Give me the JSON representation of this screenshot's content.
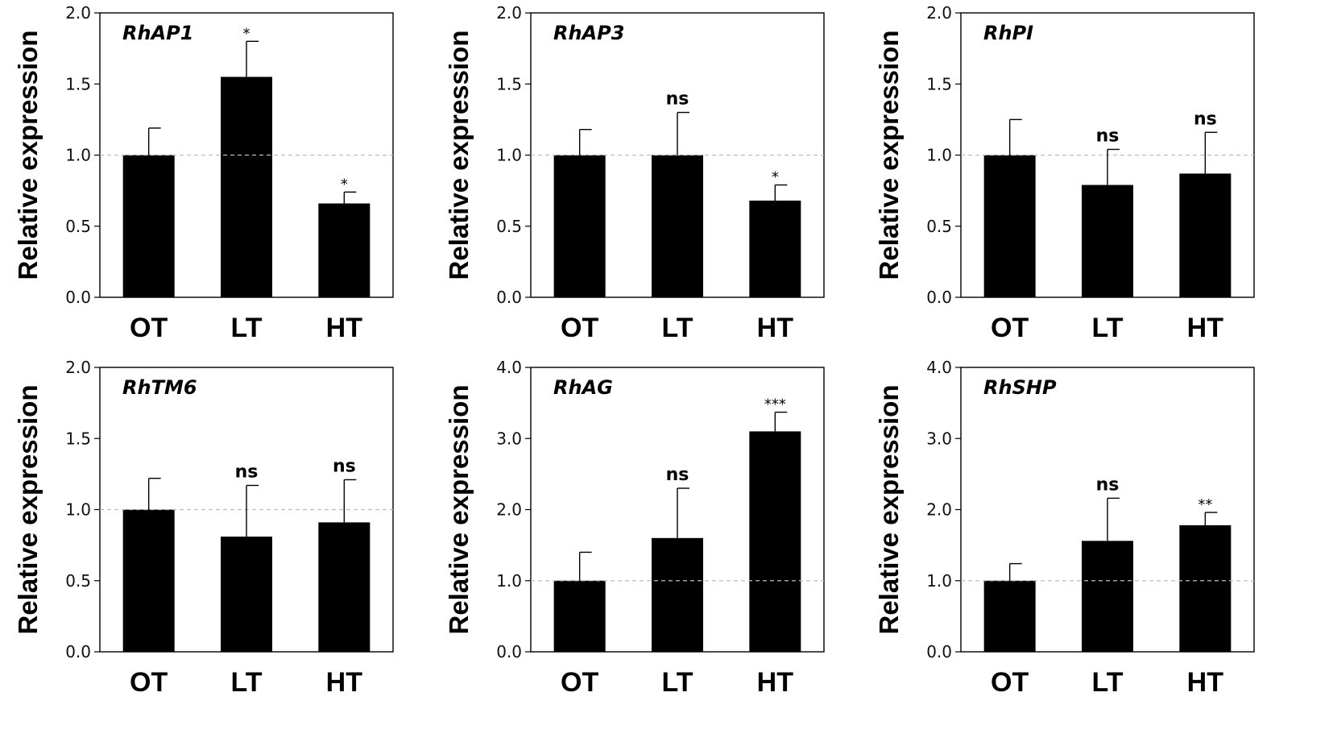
{
  "chart_data": [
    {
      "type": "bar",
      "title": "RhAP1",
      "categories": [
        "OT",
        "LT",
        "HT"
      ],
      "values": [
        1.0,
        1.55,
        0.66
      ],
      "errors": [
        0.19,
        0.25,
        0.08
      ],
      "significance": [
        "",
        "*",
        "*"
      ],
      "ylabel": "Relative expression",
      "ylim": [
        0,
        2.0
      ],
      "yticks": [
        "0.0",
        "0.5",
        "1.0",
        "1.5",
        "2.0"
      ],
      "reference_line": 1.0
    },
    {
      "type": "bar",
      "title": "RhAP3",
      "categories": [
        "OT",
        "LT",
        "HT"
      ],
      "values": [
        1.0,
        1.0,
        0.68
      ],
      "errors": [
        0.18,
        0.3,
        0.11
      ],
      "significance": [
        "",
        "ns",
        "*"
      ],
      "ylabel": "Relative expression",
      "ylim": [
        0,
        2.0
      ],
      "yticks": [
        "0.0",
        "0.5",
        "1.0",
        "1.5",
        "2.0"
      ],
      "reference_line": 1.0
    },
    {
      "type": "bar",
      "title": "RhPI",
      "categories": [
        "OT",
        "LT",
        "HT"
      ],
      "values": [
        1.0,
        0.79,
        0.87
      ],
      "errors": [
        0.25,
        0.25,
        0.29
      ],
      "significance": [
        "",
        "ns",
        "ns"
      ],
      "ylabel": "Relative expression",
      "ylim": [
        0,
        2.0
      ],
      "yticks": [
        "0.0",
        "0.5",
        "1.0",
        "1.5",
        "2.0"
      ],
      "reference_line": 1.0
    },
    {
      "type": "bar",
      "title": "RhTM6",
      "categories": [
        "OT",
        "LT",
        "HT"
      ],
      "values": [
        1.0,
        0.81,
        0.91
      ],
      "errors": [
        0.22,
        0.36,
        0.3
      ],
      "significance": [
        "",
        "ns",
        "ns"
      ],
      "ylabel": "Relative expression",
      "ylim": [
        0,
        2.0
      ],
      "yticks": [
        "0.0",
        "0.5",
        "1.0",
        "1.5",
        "2.0"
      ],
      "reference_line": 1.0
    },
    {
      "type": "bar",
      "title": "RhAG",
      "categories": [
        "OT",
        "LT",
        "HT"
      ],
      "values": [
        1.0,
        1.6,
        3.1
      ],
      "errors": [
        0.4,
        0.7,
        0.27
      ],
      "significance": [
        "",
        "ns",
        "***"
      ],
      "ylabel": "Relative expression",
      "ylim": [
        0,
        4.0
      ],
      "yticks": [
        "0.0",
        "1.0",
        "2.0",
        "3.0",
        "4.0"
      ],
      "reference_line": 1.0
    },
    {
      "type": "bar",
      "title": "RhSHP",
      "categories": [
        "OT",
        "LT",
        "HT"
      ],
      "values": [
        1.0,
        1.56,
        1.78
      ],
      "errors": [
        0.24,
        0.6,
        0.18
      ],
      "significance": [
        "",
        "ns",
        "**"
      ],
      "ylabel": "Relative expression",
      "ylim": [
        0,
        4.0
      ],
      "yticks": [
        "0.0",
        "1.0",
        "2.0",
        "3.0",
        "4.0"
      ],
      "reference_line": 1.0
    }
  ]
}
